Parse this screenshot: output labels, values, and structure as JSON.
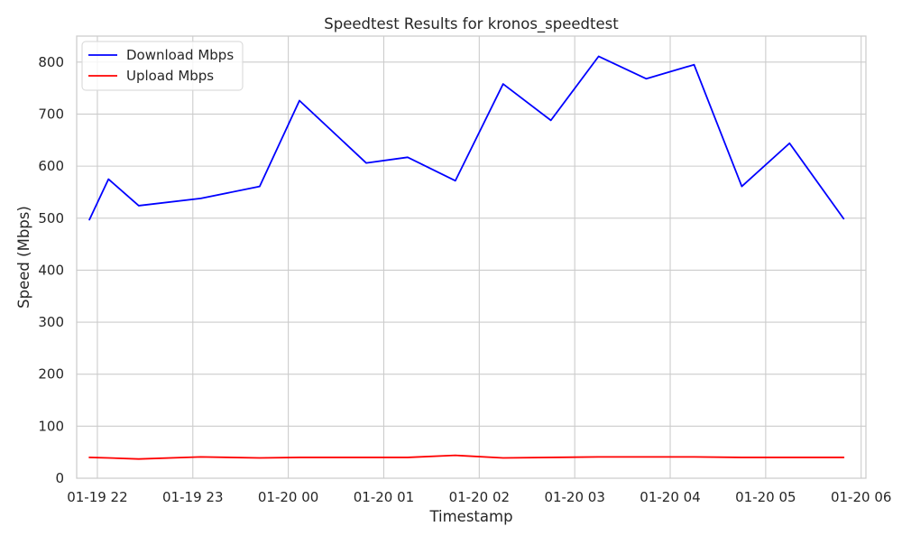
{
  "chart_data": {
    "type": "line",
    "title": "Speedtest Results for kronos_speedtest",
    "xlabel": "Timestamp",
    "ylabel": "Speed (Mbps)",
    "x_axis_kind": "datetime",
    "xlim": [
      "2024-01-19 21:47",
      "2024-01-20 06:03"
    ],
    "ylim": [
      0,
      850
    ],
    "x_ticks": [
      {
        "value": "2024-01-19 22:00",
        "label": "01-19 22"
      },
      {
        "value": "2024-01-19 23:00",
        "label": "01-19 23"
      },
      {
        "value": "2024-01-20 00:00",
        "label": "01-20 00"
      },
      {
        "value": "2024-01-20 01:00",
        "label": "01-20 01"
      },
      {
        "value": "2024-01-20 02:00",
        "label": "01-20 02"
      },
      {
        "value": "2024-01-20 03:00",
        "label": "01-20 03"
      },
      {
        "value": "2024-01-20 04:00",
        "label": "01-20 04"
      },
      {
        "value": "2024-01-20 05:00",
        "label": "01-20 05"
      },
      {
        "value": "2024-01-20 06:00",
        "label": "01-20 06"
      }
    ],
    "y_ticks": [
      0,
      100,
      200,
      300,
      400,
      500,
      600,
      700,
      800
    ],
    "grid": true,
    "legend_position": "upper-left",
    "x": [
      "2024-01-19 21:55",
      "2024-01-19 22:07",
      "2024-01-19 22:26",
      "2024-01-19 23:05",
      "2024-01-19 23:42",
      "2024-01-20 00:07",
      "2024-01-20 00:49",
      "2024-01-20 01:15",
      "2024-01-20 01:45",
      "2024-01-20 02:15",
      "2024-01-20 02:45",
      "2024-01-20 03:15",
      "2024-01-20 03:45",
      "2024-01-20 04:15",
      "2024-01-20 04:45",
      "2024-01-20 05:15",
      "2024-01-20 05:49"
    ],
    "series": [
      {
        "name": "Download Mbps",
        "color": "#0000ff",
        "values": [
          497,
          575,
          524,
          538,
          561,
          726,
          606,
          617,
          572,
          758,
          688,
          811,
          768,
          795,
          561,
          644,
          499
        ]
      },
      {
        "name": "Upload Mbps",
        "color": "#ff0000",
        "values": [
          40,
          39,
          37,
          41,
          39,
          40,
          40,
          40,
          44,
          39,
          40,
          41,
          41,
          41,
          40,
          40,
          40
        ]
      }
    ]
  }
}
